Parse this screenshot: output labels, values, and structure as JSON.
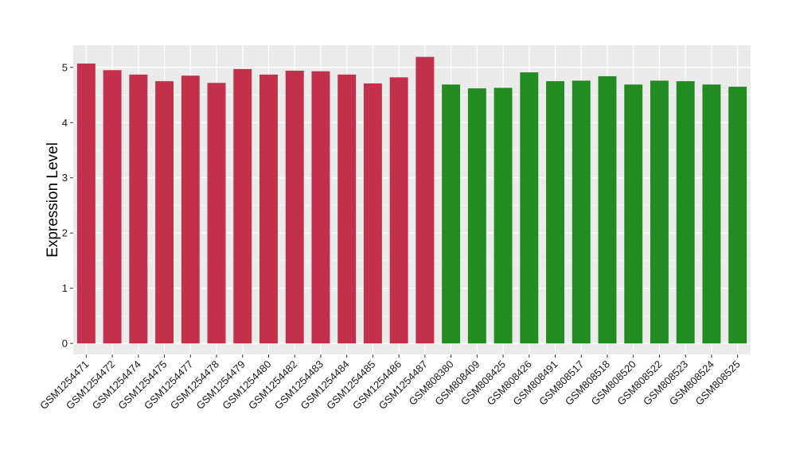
{
  "chart_data": {
    "type": "bar",
    "title": "",
    "xlabel": "",
    "ylabel": "Expression Level",
    "ylim": [
      -0.2,
      5.4
    ],
    "yticks": [
      0,
      1,
      2,
      3,
      4,
      5
    ],
    "grid": true,
    "legend": "none",
    "categories": [
      "GSM1254471",
      "GSM1254472",
      "GSM1254474",
      "GSM1254475",
      "GSM1254477",
      "GSM1254478",
      "GSM1254479",
      "GSM1254480",
      "GSM1254482",
      "GSM1254483",
      "GSM1254484",
      "GSM1254485",
      "GSM1254486",
      "GSM1254487",
      "GSM808380",
      "GSM808409",
      "GSM808425",
      "GSM808426",
      "GSM808491",
      "GSM808517",
      "GSM808518",
      "GSM808520",
      "GSM808522",
      "GSM808523",
      "GSM808524",
      "GSM808525"
    ],
    "values": [
      5.07,
      4.95,
      4.87,
      4.75,
      4.85,
      4.72,
      4.97,
      4.87,
      4.94,
      4.93,
      4.87,
      4.71,
      4.82,
      5.19,
      4.69,
      4.62,
      4.63,
      4.91,
      4.75,
      4.76,
      4.84,
      4.69,
      4.76,
      4.75,
      4.69,
      4.65
    ],
    "groups": [
      "a",
      "a",
      "a",
      "a",
      "a",
      "a",
      "a",
      "a",
      "a",
      "a",
      "a",
      "a",
      "a",
      "a",
      "b",
      "b",
      "b",
      "b",
      "b",
      "b",
      "b",
      "b",
      "b",
      "b",
      "b",
      "b"
    ],
    "colors": {
      "a": "#c3304a",
      "b": "#228b22",
      "panel": "#ebebeb",
      "grid": "#ffffff"
    }
  }
}
